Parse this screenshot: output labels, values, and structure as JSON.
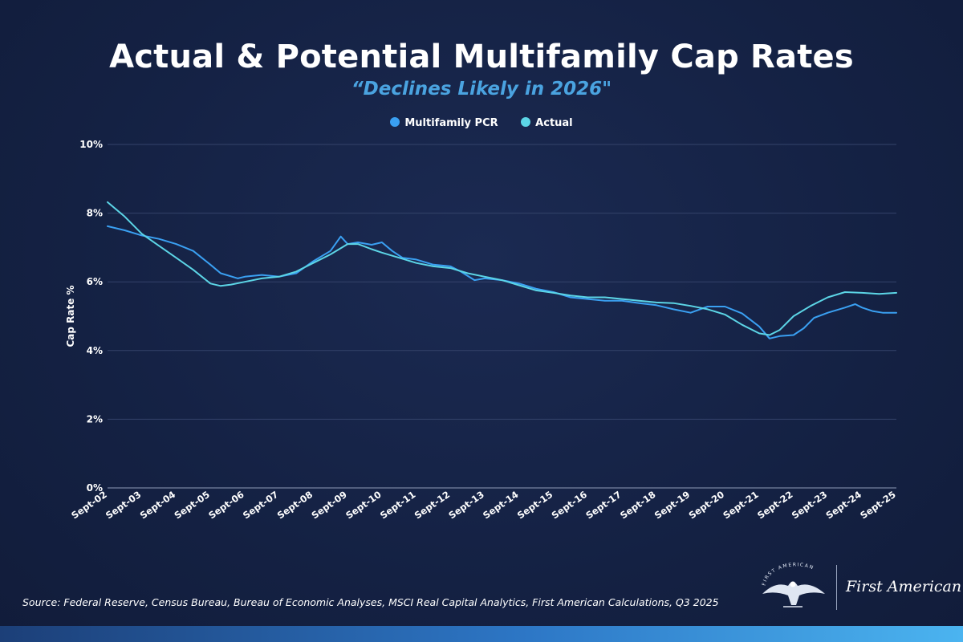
{
  "header": {
    "title": "Actual & Potential Multifamily Cap Rates",
    "subtitle": "“Declines Likely in 2026\""
  },
  "legend": {
    "items": [
      {
        "label": "Multifamily PCR",
        "color": "#3aa0f2"
      },
      {
        "label": "Actual",
        "color": "#5cd5e6"
      }
    ]
  },
  "chart_data": {
    "type": "line",
    "title": "Actual & Potential Multifamily Cap Rates",
    "subtitle": "“Declines Likely in 2026\"",
    "xlabel": "",
    "ylabel": "Cap Rate %",
    "ylim": [
      0,
      10
    ],
    "yticks": [
      0,
      2,
      4,
      6,
      8,
      10
    ],
    "ytick_labels": [
      "0%",
      "2%",
      "4%",
      "6%",
      "8%",
      "10%"
    ],
    "grid": true,
    "legend_position": "top-center",
    "xlim": [
      2002,
      2025
    ],
    "xtick_labels": [
      "Sept-02",
      "Sept-03",
      "Sept-04",
      "Sept-05",
      "Sept-06",
      "Sept-07",
      "Sept-08",
      "Sept-09",
      "Sept-10",
      "Sept-11",
      "Sept-12",
      "Sept-13",
      "Sept-14",
      "Sept-15",
      "Sept-16",
      "Sept-17",
      "Sept-18",
      "Sept-19",
      "Sept-20",
      "Sept-21",
      "Sept-22",
      "Sept-23",
      "Sept-24",
      "Sept-25"
    ],
    "series": [
      {
        "name": "Multifamily PCR",
        "color": "#3aa0f2",
        "points": [
          [
            2002,
            7.62
          ],
          [
            2002.5,
            7.5
          ],
          [
            2003,
            7.35
          ],
          [
            2003.5,
            7.25
          ],
          [
            2004,
            7.1
          ],
          [
            2004.5,
            6.9
          ],
          [
            2005,
            6.5
          ],
          [
            2005.3,
            6.25
          ],
          [
            2005.8,
            6.1
          ],
          [
            2006,
            6.15
          ],
          [
            2006.5,
            6.2
          ],
          [
            2007,
            6.15
          ],
          [
            2007.5,
            6.25
          ],
          [
            2008,
            6.6
          ],
          [
            2008.5,
            6.9
          ],
          [
            2008.8,
            7.32
          ],
          [
            2009,
            7.1
          ],
          [
            2009.3,
            7.15
          ],
          [
            2009.7,
            7.08
          ],
          [
            2010,
            7.15
          ],
          [
            2010.3,
            6.9
          ],
          [
            2010.6,
            6.7
          ],
          [
            2011,
            6.65
          ],
          [
            2011.5,
            6.5
          ],
          [
            2012,
            6.45
          ],
          [
            2012.3,
            6.3
          ],
          [
            2012.7,
            6.05
          ],
          [
            2013,
            6.1
          ],
          [
            2013.5,
            6.05
          ],
          [
            2014,
            5.95
          ],
          [
            2014.5,
            5.8
          ],
          [
            2015,
            5.7
          ],
          [
            2015.5,
            5.55
          ],
          [
            2016,
            5.5
          ],
          [
            2016.5,
            5.45
          ],
          [
            2017,
            5.45
          ],
          [
            2017.5,
            5.38
          ],
          [
            2018,
            5.32
          ],
          [
            2018.5,
            5.2
          ],
          [
            2019,
            5.1
          ],
          [
            2019.5,
            5.28
          ],
          [
            2020,
            5.28
          ],
          [
            2020.5,
            5.08
          ],
          [
            2021,
            4.7
          ],
          [
            2021.3,
            4.35
          ],
          [
            2021.6,
            4.42
          ],
          [
            2022,
            4.45
          ],
          [
            2022.3,
            4.65
          ],
          [
            2022.6,
            4.95
          ],
          [
            2023,
            5.1
          ],
          [
            2023.5,
            5.25
          ],
          [
            2023.8,
            5.35
          ],
          [
            2024,
            5.25
          ],
          [
            2024.3,
            5.15
          ],
          [
            2024.6,
            5.1
          ],
          [
            2025,
            5.1
          ]
        ]
      },
      {
        "name": "Actual",
        "color": "#5cd5e6",
        "points": [
          [
            2002,
            8.32
          ],
          [
            2002.5,
            7.9
          ],
          [
            2003,
            7.4
          ],
          [
            2003.5,
            7.05
          ],
          [
            2004,
            6.7
          ],
          [
            2004.5,
            6.35
          ],
          [
            2005,
            5.95
          ],
          [
            2005.3,
            5.88
          ],
          [
            2005.6,
            5.92
          ],
          [
            2006,
            6.0
          ],
          [
            2006.5,
            6.1
          ],
          [
            2007,
            6.15
          ],
          [
            2007.5,
            6.3
          ],
          [
            2008,
            6.55
          ],
          [
            2008.5,
            6.8
          ],
          [
            2009,
            7.1
          ],
          [
            2009.3,
            7.1
          ],
          [
            2009.7,
            6.95
          ],
          [
            2010,
            6.85
          ],
          [
            2010.5,
            6.7
          ],
          [
            2011,
            6.55
          ],
          [
            2011.5,
            6.45
          ],
          [
            2012,
            6.4
          ],
          [
            2012.5,
            6.25
          ],
          [
            2013,
            6.15
          ],
          [
            2013.5,
            6.05
          ],
          [
            2014,
            5.9
          ],
          [
            2014.5,
            5.75
          ],
          [
            2015,
            5.68
          ],
          [
            2015.5,
            5.6
          ],
          [
            2016,
            5.55
          ],
          [
            2016.5,
            5.55
          ],
          [
            2017,
            5.5
          ],
          [
            2017.5,
            5.45
          ],
          [
            2018,
            5.4
          ],
          [
            2018.5,
            5.38
          ],
          [
            2019,
            5.3
          ],
          [
            2019.5,
            5.2
          ],
          [
            2020,
            5.05
          ],
          [
            2020.5,
            4.75
          ],
          [
            2021,
            4.5
          ],
          [
            2021.3,
            4.45
          ],
          [
            2021.6,
            4.6
          ],
          [
            2022,
            5.0
          ],
          [
            2022.5,
            5.3
          ],
          [
            2023,
            5.55
          ],
          [
            2023.5,
            5.7
          ],
          [
            2024,
            5.68
          ],
          [
            2024.5,
            5.65
          ],
          [
            2025,
            5.68
          ]
        ]
      }
    ]
  },
  "footer": {
    "source": "Source: Federal Reserve, Census Bureau, Bureau of Economic Analyses, MSCI Real Capital Analytics, First American Calculations, Q3 2025",
    "logo_text": "First American",
    "seal_text": "FIRST AMERICAN"
  }
}
